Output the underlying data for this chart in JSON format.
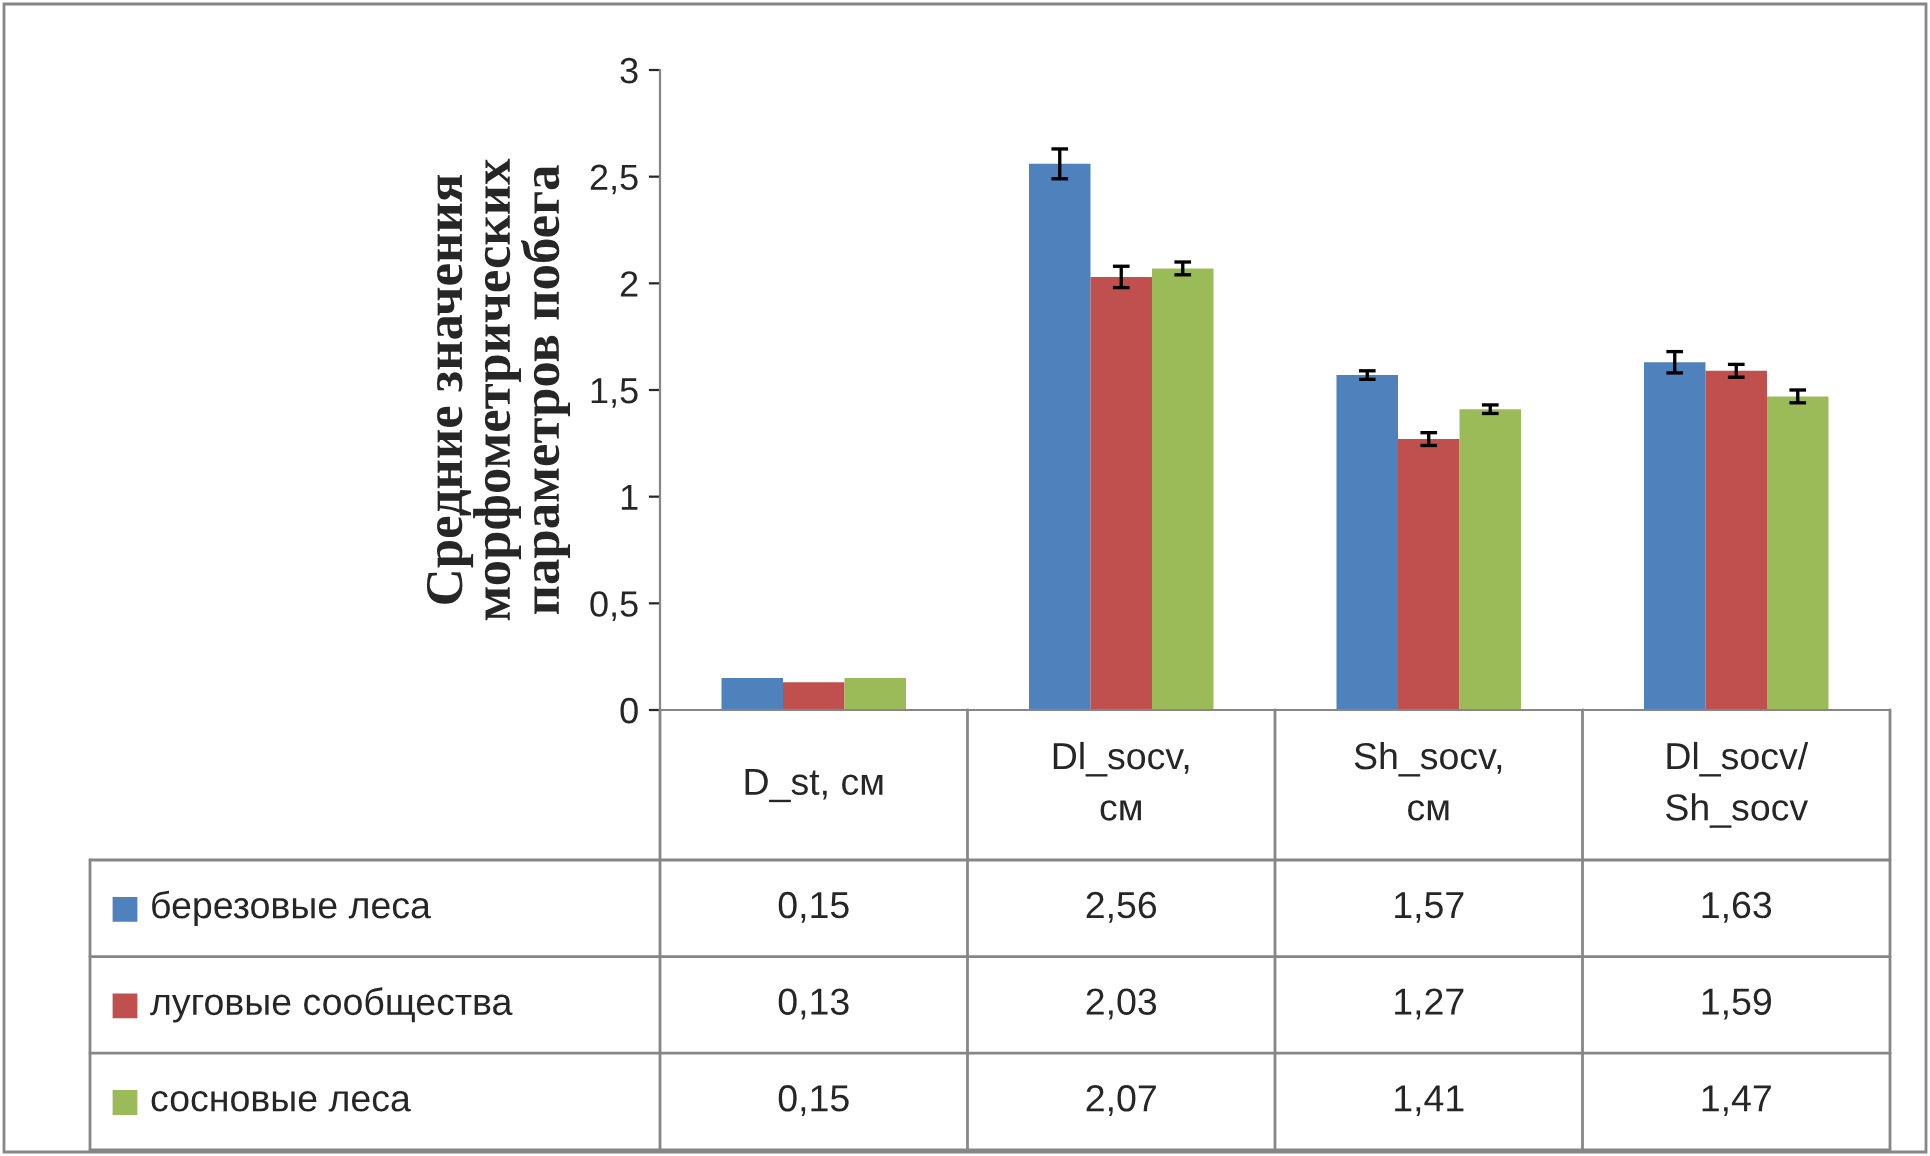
{
  "chart_data": {
    "type": "bar",
    "ylabel": "Средние значения\nморфометрических\nпараметров побега",
    "categories": [
      "D_st, см",
      "Dl_socv,\nсм",
      "Sh_socv,\nсм",
      "Dl_socv/\nSh_socv"
    ],
    "series": [
      {
        "name": "березовые леса",
        "color": "#4f81bd",
        "values": [
          0.15,
          2.56,
          1.57,
          1.63
        ],
        "value_labels": [
          "0,15",
          "2,56",
          "1,57",
          "1,63"
        ],
        "errors": [
          null,
          0.07,
          0.02,
          0.05
        ]
      },
      {
        "name": "луговые сообщества",
        "color": "#c0504d",
        "values": [
          0.13,
          2.03,
          1.27,
          1.59
        ],
        "value_labels": [
          "0,13",
          "2,03",
          "1,27",
          "1,59"
        ],
        "errors": [
          null,
          0.05,
          0.03,
          0.03
        ]
      },
      {
        "name": "сосновые леса",
        "color": "#9bbb59",
        "values": [
          0.15,
          2.07,
          1.41,
          1.47
        ],
        "value_labels": [
          "0,15",
          "2,07",
          "1,41",
          "1,47"
        ],
        "errors": [
          null,
          0.03,
          0.02,
          0.03
        ]
      }
    ],
    "ylim": [
      0,
      3
    ],
    "yticks": [
      0,
      {
        "value": 0.5,
        "label": "0,5"
      },
      1,
      {
        "value": 1.5,
        "label": "1,5"
      },
      2,
      {
        "value": 2.5,
        "label": "2,5"
      },
      3
    ],
    "grid": false,
    "legend": "bottom left"
  }
}
